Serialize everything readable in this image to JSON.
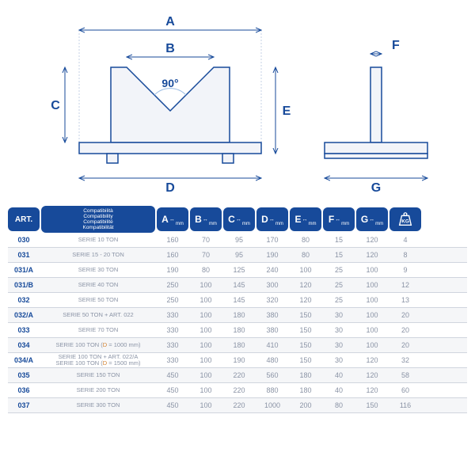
{
  "diagram": {
    "labels": {
      "A": "A",
      "B": "B",
      "C": "C",
      "D": "D",
      "E": "E",
      "F": "F",
      "G": "G",
      "angle": "90°"
    },
    "colors": {
      "line": "#174a9a",
      "fill": "#f2f4f9",
      "text": "#174a9a",
      "angle_arc": "#9bbce3"
    }
  },
  "headers": {
    "art": "ART.",
    "compat": [
      "Compatibilità",
      "Compatibility",
      "Compatibilité",
      "Kompatibilität"
    ],
    "dims": [
      "A",
      "B",
      "C",
      "D",
      "E",
      "F",
      "G"
    ],
    "kg": "KG"
  },
  "rows": [
    {
      "art": "030",
      "compat": "SERIE 10 TON",
      "vals": [
        160,
        70,
        95,
        170,
        80,
        15,
        120,
        4
      ]
    },
    {
      "art": "031",
      "compat": "SERIE 15 - 20 TON",
      "vals": [
        160,
        70,
        95,
        190,
        80,
        15,
        120,
        8
      ]
    },
    {
      "art": "031/A",
      "compat": "SERIE 30 TON",
      "vals": [
        190,
        80,
        125,
        240,
        100,
        25,
        100,
        9
      ]
    },
    {
      "art": "031/B",
      "compat": "SERIE 40 TON",
      "vals": [
        250,
        100,
        145,
        300,
        120,
        25,
        100,
        12
      ]
    },
    {
      "art": "032",
      "compat": "SERIE 50 TON",
      "vals": [
        250,
        100,
        145,
        320,
        120,
        25,
        100,
        13
      ]
    },
    {
      "art": "032/A",
      "compat": "SERIE 50 TON + ART. 022",
      "vals": [
        330,
        100,
        180,
        380,
        150,
        30,
        100,
        20
      ]
    },
    {
      "art": "033",
      "compat": "SERIE 70 TON",
      "vals": [
        330,
        100,
        180,
        380,
        150,
        30,
        100,
        20
      ]
    },
    {
      "art": "034",
      "compat_html": "SERIE 100 TON (<span class='highlight'>D</span> = 1000 mm)",
      "vals": [
        330,
        100,
        180,
        410,
        150,
        30,
        100,
        20
      ]
    },
    {
      "art": "034/A",
      "compat_html": "SERIE 100 TON + ART. 022/A<br>SERIE 100 TON (<span class='highlight'>D</span> = 1500 mm)",
      "vals": [
        330,
        100,
        190,
        480,
        150,
        30,
        120,
        32
      ]
    },
    {
      "art": "035",
      "compat": "SERIE 150 TON",
      "vals": [
        450,
        100,
        220,
        560,
        180,
        40,
        120,
        58
      ]
    },
    {
      "art": "036",
      "compat": "SERIE 200 TON",
      "vals": [
        450,
        100,
        220,
        880,
        180,
        40,
        120,
        60
      ]
    },
    {
      "art": "037",
      "compat": "SERIE 300 TON",
      "vals": [
        450,
        100,
        220,
        1000,
        200,
        80,
        150,
        116
      ]
    }
  ]
}
